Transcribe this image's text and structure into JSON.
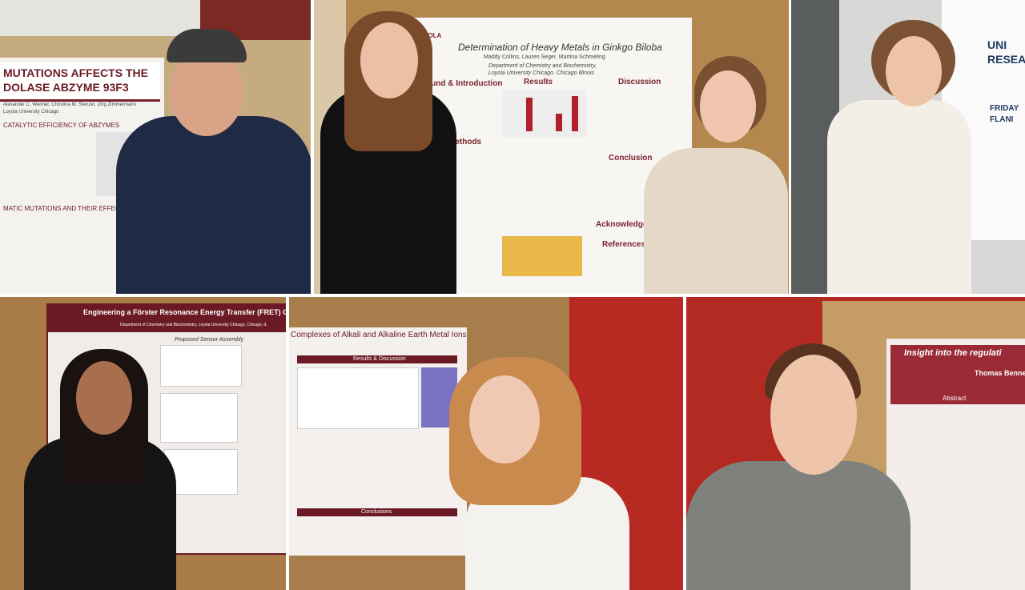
{
  "tiles": [
    {
      "texts": [
        "MUTATIONS AFFECTS THE",
        "DOLASE ABZYME 93F3",
        "Alexander C. Wenner, Christina M. Stenzel, Jörg Zimmermann",
        "Loyola University Chicago",
        "CATALYTIC EFFICIENCY OF ABZYMES",
        "MATIC MUTATIONS AND THEIR EFFECTS ON BIN"
      ]
    },
    {
      "texts": [
        "Determination of Heavy Metals in Ginkgo Biloba",
        "Maddy Collins, Lauren Seger, Martina Schmeling",
        "Department of Chemistry and Biochemistry,",
        "Loyola University Chicago, Chicago Illinois",
        "ound & Introduction",
        "Results",
        "Discussion",
        "Methods",
        "Conclusion",
        "Acknowledgem",
        "References",
        "LOYOLA"
      ]
    },
    {
      "texts": [
        "UNI",
        "RESEA",
        "FRIDAY",
        "FLANI"
      ]
    },
    {
      "texts": [
        "Engineering a Förster Resonance Energy Transfer (FRET) GABA Specific Biosensor",
        "Department of Chemistry and Biochemistry, Loyola University Chicago, Chicago, IL",
        "Proposed Sensor Assembly"
      ]
    },
    {
      "texts": [
        "Complexes of Alkali and Alkaline Earth Metal Ions",
        "Results & Discussion",
        "Conclusions"
      ]
    },
    {
      "texts": [
        "Insight into the regulati",
        "Thomas Bennett",
        "Abstract"
      ]
    }
  ]
}
